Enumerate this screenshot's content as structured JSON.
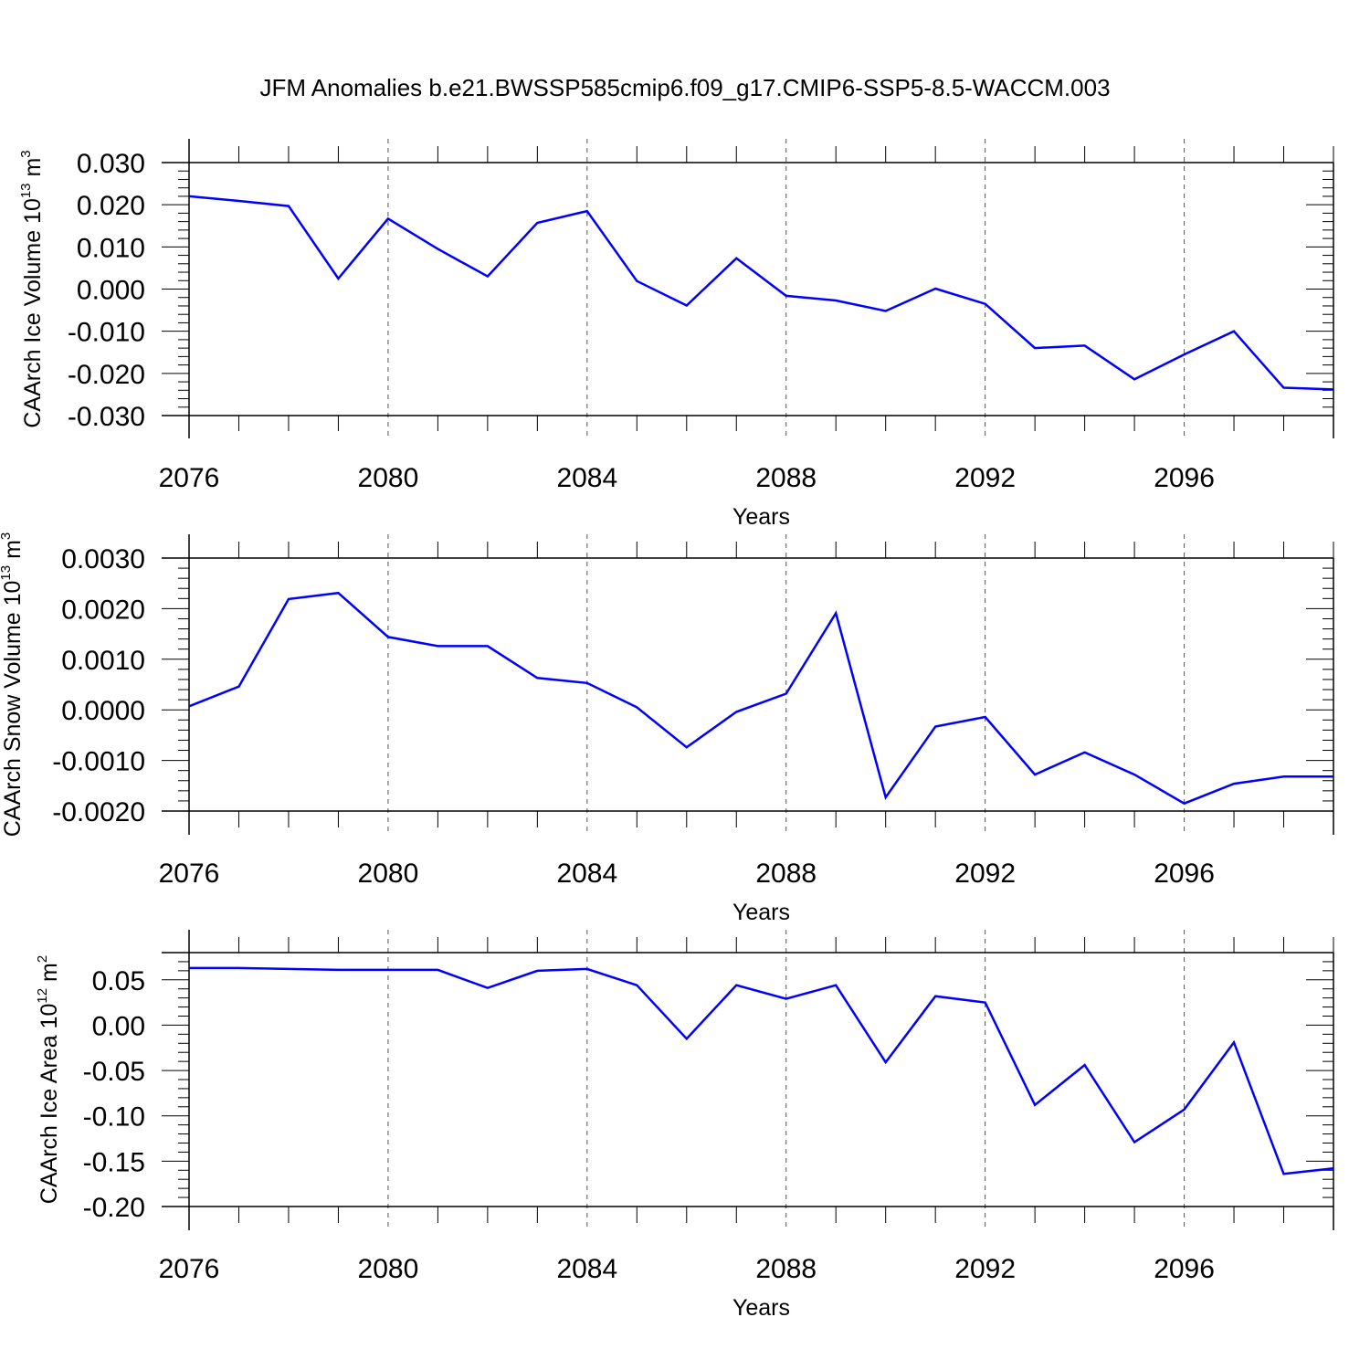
{
  "chart_data": [
    {
      "type": "line",
      "title": "JFM Anomalies b.e21.BWSSP585cmip6.f09_g17.CMIP6-SSP5-8.5-WACCM.003",
      "ylabel": "CAArch Ice Volume 10",
      "ylabel_exp": "13",
      "ylabel_unit": " m",
      "ylabel_unit_exp": "3",
      "xlabel": "Years",
      "xlim": [
        2076,
        2099
      ],
      "ylim": [
        -0.03,
        0.03
      ],
      "yticks": [
        -0.03,
        -0.02,
        -0.01,
        0.0,
        0.01,
        0.02,
        0.03
      ],
      "yticklabels": [
        "-0.030",
        "-0.020",
        "-0.010",
        "0.000",
        "0.010",
        "0.020",
        "0.030"
      ],
      "xticks": [
        2076,
        2080,
        2084,
        2088,
        2092,
        2096
      ],
      "xticklabels": [
        "2076",
        "2080",
        "2084",
        "2088",
        "2092",
        "2096"
      ],
      "series": [
        {
          "name": "CAArch Ice Volume",
          "color": "#0000ff",
          "x": [
            2076,
            2077,
            2078,
            2079,
            2080,
            2081,
            2082,
            2083,
            2084,
            2085,
            2086,
            2087,
            2088,
            2089,
            2090,
            2091,
            2092,
            2093,
            2094,
            2095,
            2096,
            2097,
            2098,
            2099
          ],
          "values": [
            0.022,
            0.0209,
            0.0197,
            0.0025,
            0.0167,
            0.0095,
            0.003,
            0.0157,
            0.0185,
            0.0019,
            -0.0039,
            0.0073,
            -0.0016,
            -0.0027,
            -0.0052,
            0.0001,
            -0.0035,
            -0.014,
            -0.0134,
            -0.0214,
            -0.0155,
            -0.01,
            -0.0234,
            -0.0238
          ]
        }
      ]
    },
    {
      "type": "line",
      "ylabel": "CAArch Snow Volume 10",
      "ylabel_exp": "13",
      "ylabel_unit": " m",
      "ylabel_unit_exp": "3",
      "xlabel": "Years",
      "xlim": [
        2076,
        2099
      ],
      "ylim": [
        -0.002,
        0.003
      ],
      "yticks": [
        -0.002,
        -0.001,
        0.0,
        0.001,
        0.002,
        0.003
      ],
      "yticklabels": [
        "-0.0020",
        "-0.0010",
        "0.0000",
        "0.0010",
        "0.0020",
        "0.0030"
      ],
      "xticks": [
        2076,
        2080,
        2084,
        2088,
        2092,
        2096
      ],
      "xticklabels": [
        "2076",
        "2080",
        "2084",
        "2088",
        "2092",
        "2096"
      ],
      "series": [
        {
          "name": "CAArch Snow Volume",
          "color": "#0000ff",
          "x": [
            2076,
            2077,
            2078,
            2079,
            2080,
            2081,
            2082,
            2083,
            2084,
            2085,
            2086,
            2087,
            2088,
            2089,
            2090,
            2091,
            2092,
            2093,
            2094,
            2095,
            2096,
            2097,
            2098,
            2099
          ],
          "values": [
            7e-05,
            0.00046,
            0.00219,
            0.00231,
            0.00144,
            0.00126,
            0.00126,
            0.00063,
            0.00053,
            5e-05,
            -0.00074,
            -4e-05,
            0.00032,
            0.00191,
            -0.00173,
            -0.00033,
            -0.00014,
            -0.00128,
            -0.00084,
            -0.00128,
            -0.00185,
            -0.00146,
            -0.00132,
            -0.00132
          ]
        }
      ]
    },
    {
      "type": "line",
      "ylabel": "CAArch Ice Area 10",
      "ylabel_exp": "12",
      "ylabel_unit": " m",
      "ylabel_unit_exp": "2",
      "xlabel": "Years",
      "xlim": [
        2076,
        2099
      ],
      "ylim": [
        -0.2,
        0.08
      ],
      "yticks": [
        -0.2,
        -0.15,
        -0.1,
        -0.05,
        0.0,
        0.05
      ],
      "yticklabels": [
        "-0.20",
        "-0.15",
        "-0.10",
        "-0.05",
        "0.00",
        "0.05"
      ],
      "xticks": [
        2076,
        2080,
        2084,
        2088,
        2092,
        2096
      ],
      "xticklabels": [
        "2076",
        "2080",
        "2084",
        "2088",
        "2092",
        "2096"
      ],
      "series": [
        {
          "name": "CAArch Ice Area",
          "color": "#0000ff",
          "x": [
            2076,
            2077,
            2078,
            2079,
            2080,
            2081,
            2082,
            2083,
            2084,
            2085,
            2086,
            2087,
            2088,
            2089,
            2090,
            2091,
            2092,
            2093,
            2094,
            2095,
            2096,
            2097,
            2098,
            2099
          ],
          "values": [
            0.063,
            0.063,
            0.062,
            0.061,
            0.061,
            0.061,
            0.041,
            0.06,
            0.062,
            0.044,
            -0.015,
            0.044,
            0.029,
            0.044,
            -0.041,
            0.032,
            0.025,
            -0.088,
            -0.044,
            -0.129,
            -0.093,
            -0.019,
            -0.164,
            -0.158
          ]
        }
      ]
    }
  ]
}
